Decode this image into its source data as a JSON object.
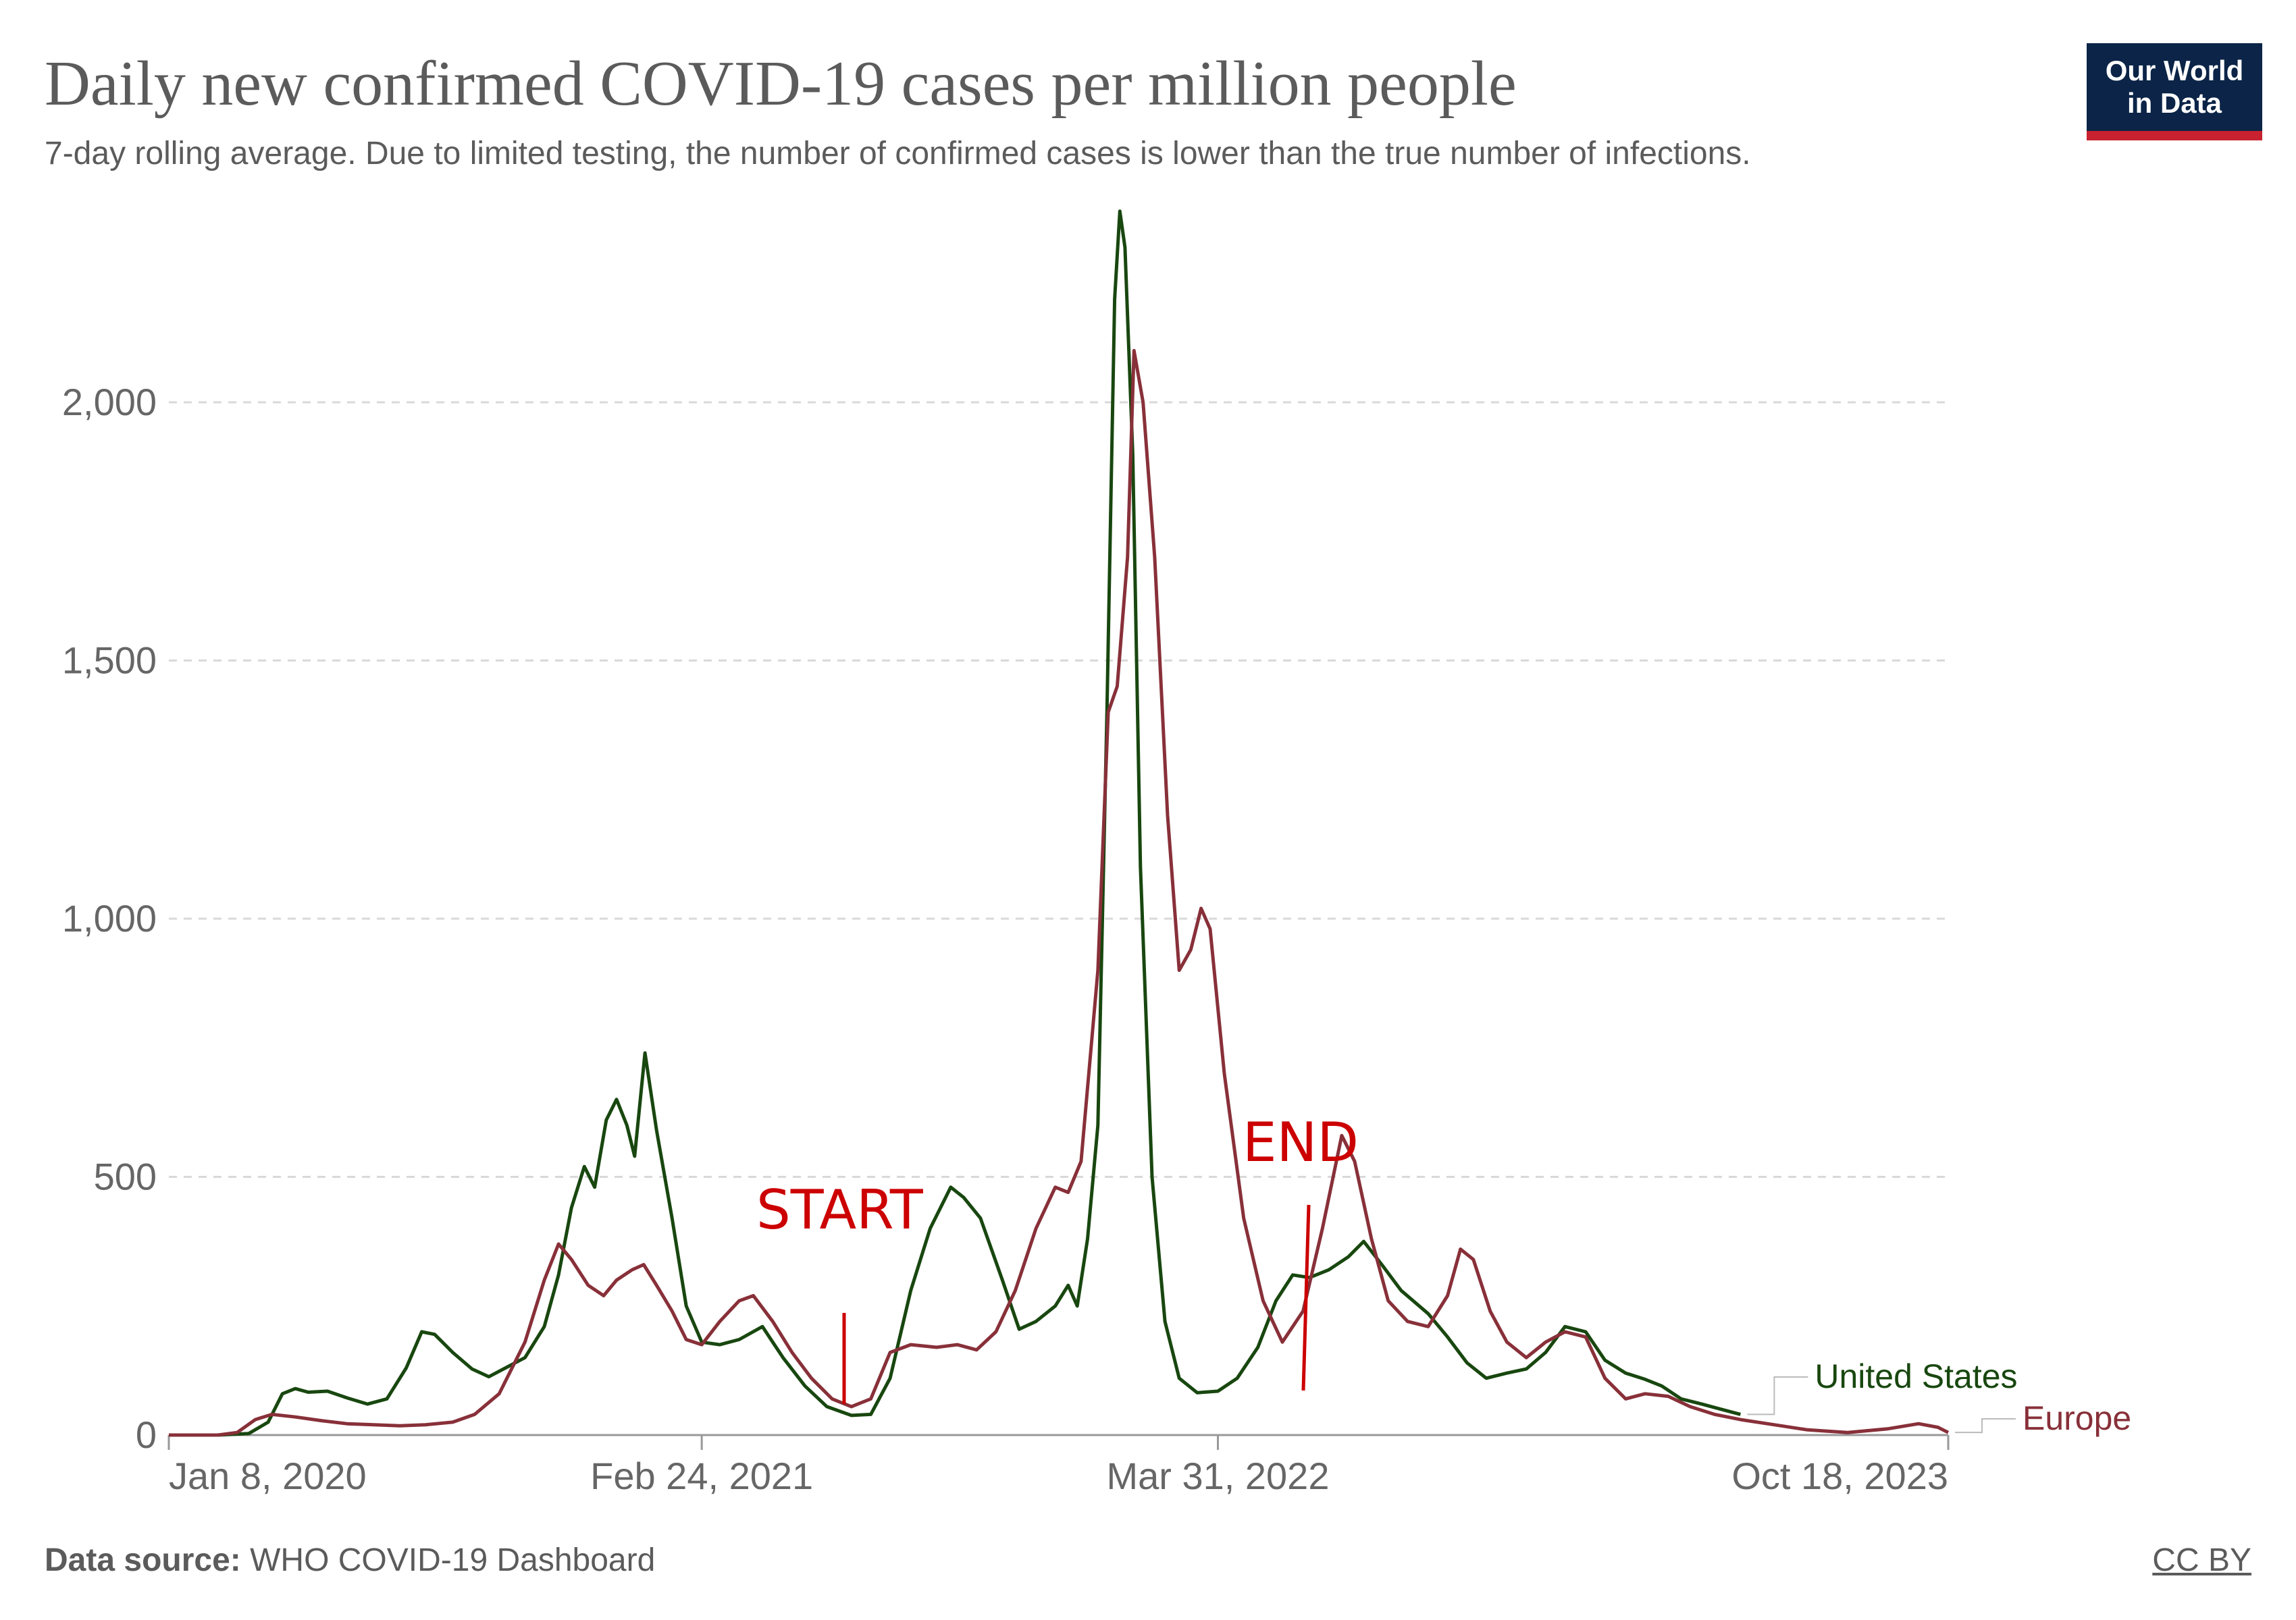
{
  "header": {
    "title": "Daily new confirmed COVID-19 cases per million people",
    "subtitle": "7-day rolling average. Due to limited testing, the number of confirmed cases is lower than the true number of infections.",
    "logo_line1": "Our World",
    "logo_line2": "in Data"
  },
  "footer": {
    "source_label": "Data source:",
    "source_text": " WHO COVID-19 Dashboard",
    "license": "CC BY"
  },
  "annotations": {
    "start_label": "START",
    "end_label": "END",
    "color": "#cc0000"
  },
  "chart_data": {
    "type": "line",
    "title": "Daily new confirmed COVID-19 cases per million people",
    "subtitle": "7-day rolling average. Due to limited testing, the number of confirmed cases is lower than the true number of infections.",
    "xlabel": "",
    "ylabel": "",
    "x_unit": "date",
    "x_range": [
      "2020-01-08",
      "2023-10-18"
    ],
    "x_ticks": [
      {
        "date": "2020-01-08",
        "label": "Jan 8, 2020"
      },
      {
        "date": "2021-02-24",
        "label": "Feb 24, 2021"
      },
      {
        "date": "2022-03-31",
        "label": "Mar 31, 2022"
      },
      {
        "date": "2023-10-18",
        "label": "Oct 18, 2023"
      }
    ],
    "ylim": [
      0,
      2400
    ],
    "y_ticks": [
      0,
      500,
      1000,
      1500,
      2000
    ],
    "y_tick_labels": [
      "0",
      "500",
      "1,000",
      "1,500",
      "2,000"
    ],
    "grid": "horizontal dashed",
    "legend_placement": "right end of lines",
    "series": [
      {
        "name": "United States",
        "color": "#18470f",
        "points": [
          [
            "2020-01-08",
            0
          ],
          [
            "2020-02-15",
            0
          ],
          [
            "2020-03-10",
            3
          ],
          [
            "2020-03-25",
            25
          ],
          [
            "2020-04-05",
            80
          ],
          [
            "2020-04-15",
            90
          ],
          [
            "2020-04-25",
            83
          ],
          [
            "2020-05-10",
            85
          ],
          [
            "2020-05-25",
            72
          ],
          [
            "2020-06-10",
            60
          ],
          [
            "2020-06-25",
            70
          ],
          [
            "2020-07-10",
            130
          ],
          [
            "2020-07-22",
            200
          ],
          [
            "2020-08-01",
            195
          ],
          [
            "2020-08-15",
            160
          ],
          [
            "2020-08-30",
            128
          ],
          [
            "2020-09-12",
            113
          ],
          [
            "2020-09-25",
            130
          ],
          [
            "2020-10-10",
            150
          ],
          [
            "2020-10-25",
            210
          ],
          [
            "2020-11-05",
            310
          ],
          [
            "2020-11-15",
            440
          ],
          [
            "2020-11-25",
            520
          ],
          [
            "2020-12-03",
            480
          ],
          [
            "2020-12-12",
            610
          ],
          [
            "2020-12-20",
            650
          ],
          [
            "2020-12-28",
            600
          ],
          [
            "2021-01-03",
            540
          ],
          [
            "2021-01-11",
            740
          ],
          [
            "2021-01-20",
            590
          ],
          [
            "2021-02-01",
            420
          ],
          [
            "2021-02-12",
            250
          ],
          [
            "2021-02-24",
            180
          ],
          [
            "2021-03-10",
            175
          ],
          [
            "2021-03-25",
            185
          ],
          [
            "2021-04-12",
            210
          ],
          [
            "2021-04-28",
            150
          ],
          [
            "2021-05-15",
            95
          ],
          [
            "2021-06-01",
            55
          ],
          [
            "2021-06-20",
            38
          ],
          [
            "2021-07-05",
            40
          ],
          [
            "2021-07-20",
            110
          ],
          [
            "2021-08-05",
            280
          ],
          [
            "2021-08-20",
            400
          ],
          [
            "2021-09-05",
            480
          ],
          [
            "2021-09-15",
            460
          ],
          [
            "2021-09-28",
            420
          ],
          [
            "2021-10-15",
            300
          ],
          [
            "2021-10-28",
            205
          ],
          [
            "2021-11-10",
            220
          ],
          [
            "2021-11-25",
            250
          ],
          [
            "2021-12-05",
            290
          ],
          [
            "2021-12-12",
            250
          ],
          [
            "2021-12-20",
            380
          ],
          [
            "2021-12-28",
            600
          ],
          [
            "2022-01-04",
            1400
          ],
          [
            "2022-01-10",
            2200
          ],
          [
            "2022-01-14",
            2370
          ],
          [
            "2022-01-18",
            2300
          ],
          [
            "2022-01-24",
            1900
          ],
          [
            "2022-01-30",
            1100
          ],
          [
            "2022-02-08",
            500
          ],
          [
            "2022-02-18",
            220
          ],
          [
            "2022-03-01",
            110
          ],
          [
            "2022-03-15",
            82
          ],
          [
            "2022-03-31",
            85
          ],
          [
            "2022-04-15",
            110
          ],
          [
            "2022-05-01",
            170
          ],
          [
            "2022-05-15",
            260
          ],
          [
            "2022-05-28",
            310
          ],
          [
            "2022-06-10",
            305
          ],
          [
            "2022-06-25",
            320
          ],
          [
            "2022-07-10",
            345
          ],
          [
            "2022-07-22",
            375
          ],
          [
            "2022-08-05",
            330
          ],
          [
            "2022-08-20",
            280
          ],
          [
            "2022-09-10",
            235
          ],
          [
            "2022-09-25",
            190
          ],
          [
            "2022-10-10",
            140
          ],
          [
            "2022-10-25",
            110
          ],
          [
            "2022-11-10",
            120
          ],
          [
            "2022-11-25",
            128
          ],
          [
            "2022-12-10",
            160
          ],
          [
            "2022-12-25",
            210
          ],
          [
            "2023-01-10",
            200
          ],
          [
            "2023-01-25",
            145
          ],
          [
            "2023-02-10",
            120
          ],
          [
            "2023-02-25",
            108
          ],
          [
            "2023-03-10",
            95
          ],
          [
            "2023-03-25",
            70
          ],
          [
            "2023-04-10",
            60
          ],
          [
            "2023-04-25",
            50
          ],
          [
            "2023-05-10",
            40
          ]
        ]
      },
      {
        "name": "Europe",
        "color": "#883039",
        "points": [
          [
            "2020-01-08",
            0
          ],
          [
            "2020-02-15",
            0
          ],
          [
            "2020-03-01",
            5
          ],
          [
            "2020-03-15",
            30
          ],
          [
            "2020-03-28",
            40
          ],
          [
            "2020-04-15",
            35
          ],
          [
            "2020-05-05",
            28
          ],
          [
            "2020-05-25",
            22
          ],
          [
            "2020-06-15",
            20
          ],
          [
            "2020-07-05",
            18
          ],
          [
            "2020-07-25",
            20
          ],
          [
            "2020-08-15",
            25
          ],
          [
            "2020-09-01",
            40
          ],
          [
            "2020-09-20",
            80
          ],
          [
            "2020-10-10",
            180
          ],
          [
            "2020-10-25",
            300
          ],
          [
            "2020-11-05",
            370
          ],
          [
            "2020-11-15",
            340
          ],
          [
            "2020-11-28",
            290
          ],
          [
            "2020-12-10",
            270
          ],
          [
            "2020-12-20",
            300
          ],
          [
            "2021-01-01",
            320
          ],
          [
            "2021-01-10",
            330
          ],
          [
            "2021-01-20",
            290
          ],
          [
            "2021-02-01",
            240
          ],
          [
            "2021-02-12",
            185
          ],
          [
            "2021-02-24",
            175
          ],
          [
            "2021-03-10",
            220
          ],
          [
            "2021-03-25",
            260
          ],
          [
            "2021-04-05",
            270
          ],
          [
            "2021-04-20",
            220
          ],
          [
            "2021-05-05",
            160
          ],
          [
            "2021-05-20",
            110
          ],
          [
            "2021-06-05",
            70
          ],
          [
            "2021-06-20",
            55
          ],
          [
            "2021-07-05",
            70
          ],
          [
            "2021-07-20",
            160
          ],
          [
            "2021-08-05",
            175
          ],
          [
            "2021-08-25",
            170
          ],
          [
            "2021-09-10",
            175
          ],
          [
            "2021-09-25",
            165
          ],
          [
            "2021-10-10",
            200
          ],
          [
            "2021-10-25",
            280
          ],
          [
            "2021-11-10",
            400
          ],
          [
            "2021-11-25",
            480
          ],
          [
            "2021-12-05",
            470
          ],
          [
            "2021-12-15",
            530
          ],
          [
            "2021-12-28",
            900
          ],
          [
            "2022-01-05",
            1400
          ],
          [
            "2022-01-12",
            1450
          ],
          [
            "2022-01-20",
            1700
          ],
          [
            "2022-01-25",
            2100
          ],
          [
            "2022-02-01",
            2000
          ],
          [
            "2022-02-10",
            1700
          ],
          [
            "2022-02-20",
            1200
          ],
          [
            "2022-03-01",
            900
          ],
          [
            "2022-03-10",
            940
          ],
          [
            "2022-03-18",
            1020
          ],
          [
            "2022-03-25",
            980
          ],
          [
            "2022-04-05",
            700
          ],
          [
            "2022-04-20",
            420
          ],
          [
            "2022-05-05",
            260
          ],
          [
            "2022-05-20",
            180
          ],
          [
            "2022-06-05",
            240
          ],
          [
            "2022-06-20",
            400
          ],
          [
            "2022-07-05",
            580
          ],
          [
            "2022-07-15",
            530
          ],
          [
            "2022-07-28",
            380
          ],
          [
            "2022-08-10",
            260
          ],
          [
            "2022-08-25",
            220
          ],
          [
            "2022-09-10",
            210
          ],
          [
            "2022-09-25",
            270
          ],
          [
            "2022-10-05",
            360
          ],
          [
            "2022-10-15",
            340
          ],
          [
            "2022-10-28",
            240
          ],
          [
            "2022-11-10",
            180
          ],
          [
            "2022-11-25",
            150
          ],
          [
            "2022-12-10",
            180
          ],
          [
            "2022-12-25",
            200
          ],
          [
            "2023-01-10",
            190
          ],
          [
            "2023-01-25",
            110
          ],
          [
            "2023-02-10",
            70
          ],
          [
            "2023-02-25",
            80
          ],
          [
            "2023-03-15",
            75
          ],
          [
            "2023-04-01",
            55
          ],
          [
            "2023-04-20",
            40
          ],
          [
            "2023-05-10",
            30
          ],
          [
            "2023-06-05",
            20
          ],
          [
            "2023-07-01",
            10
          ],
          [
            "2023-08-01",
            5
          ],
          [
            "2023-09-01",
            12
          ],
          [
            "2023-09-25",
            22
          ],
          [
            "2023-10-10",
            15
          ],
          [
            "2023-10-18",
            5
          ]
        ]
      }
    ]
  }
}
